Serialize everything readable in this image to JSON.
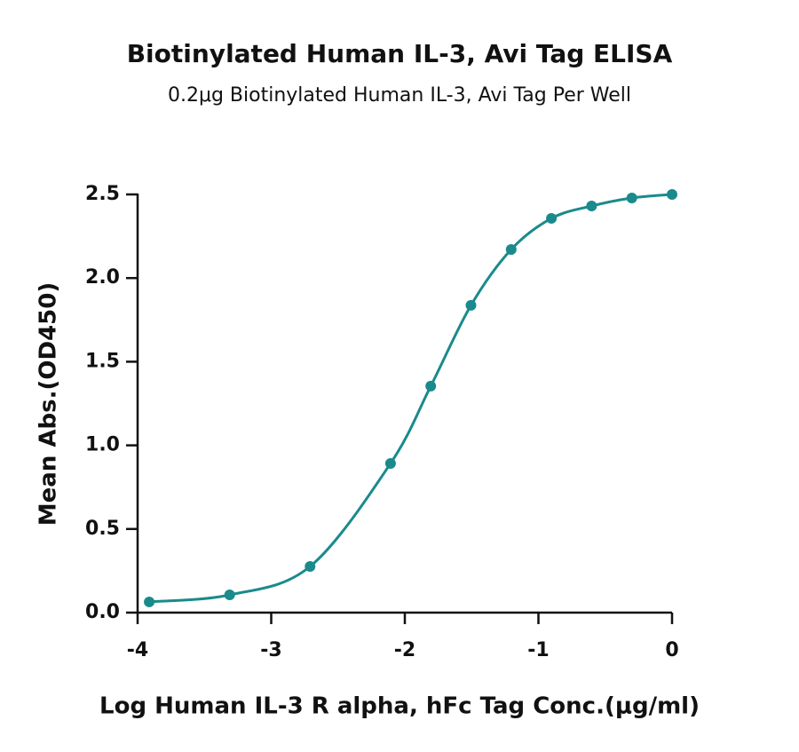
{
  "chart_data": {
    "type": "scatter",
    "title": "Biotinylated Human IL-3, Avi Tag ELISA",
    "subtitle": "0.2μg Biotinylated Human IL-3, Avi Tag Per Well",
    "x_label": "Log Human IL-3 R alpha, hFc Tag Conc.(μg/ml)",
    "y_label": "Mean Abs.(OD450)",
    "x": [
      -3.913,
      -3.311,
      -2.709,
      -2.107,
      -1.806,
      -1.505,
      -1.204,
      -0.903,
      -0.602,
      -0.301,
      0
    ],
    "series": [
      {
        "color": "#1a8a8c",
        "line": true,
        "values": [
          0.064,
          0.106,
          0.276,
          0.892,
          1.354,
          1.837,
          2.171,
          2.357,
          2.431,
          2.479,
          2.5
        ]
      }
    ],
    "xlim": [
      -4,
      0
    ],
    "xticks": [
      -4,
      -3,
      -2,
      -1,
      0
    ],
    "ylim": [
      0,
      2.5
    ],
    "yticks": [
      {
        "value": 0,
        "label": "0.0"
      },
      0.5,
      {
        "value": 1,
        "label": "1.0"
      },
      1.5,
      {
        "value": 2,
        "label": "2.0"
      },
      2.5
    ],
    "grid": false
  }
}
